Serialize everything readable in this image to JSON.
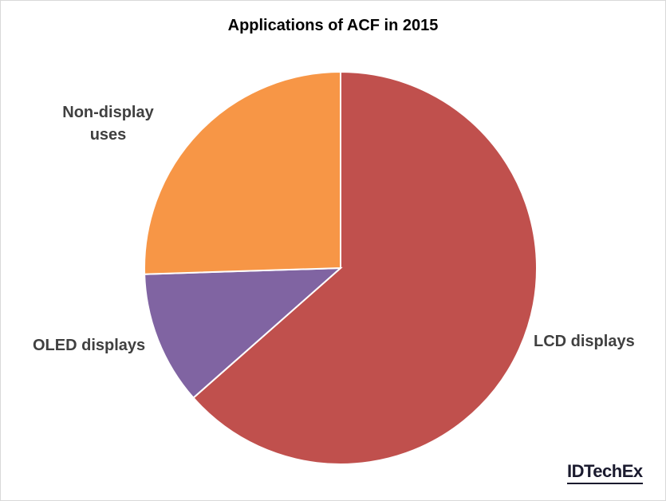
{
  "chart_data": {
    "type": "pie",
    "title": "Applications of ACF in 2015",
    "slices": [
      {
        "label": "LCD displays",
        "value": 63.5,
        "color": "#c0504d"
      },
      {
        "label": "OLED displays",
        "value": 11.0,
        "color": "#8064a2"
      },
      {
        "label": "Non-display uses",
        "value": 25.5,
        "color": "#f79646"
      }
    ],
    "legend": "none"
  },
  "brand": {
    "text": "IDTechEx"
  }
}
